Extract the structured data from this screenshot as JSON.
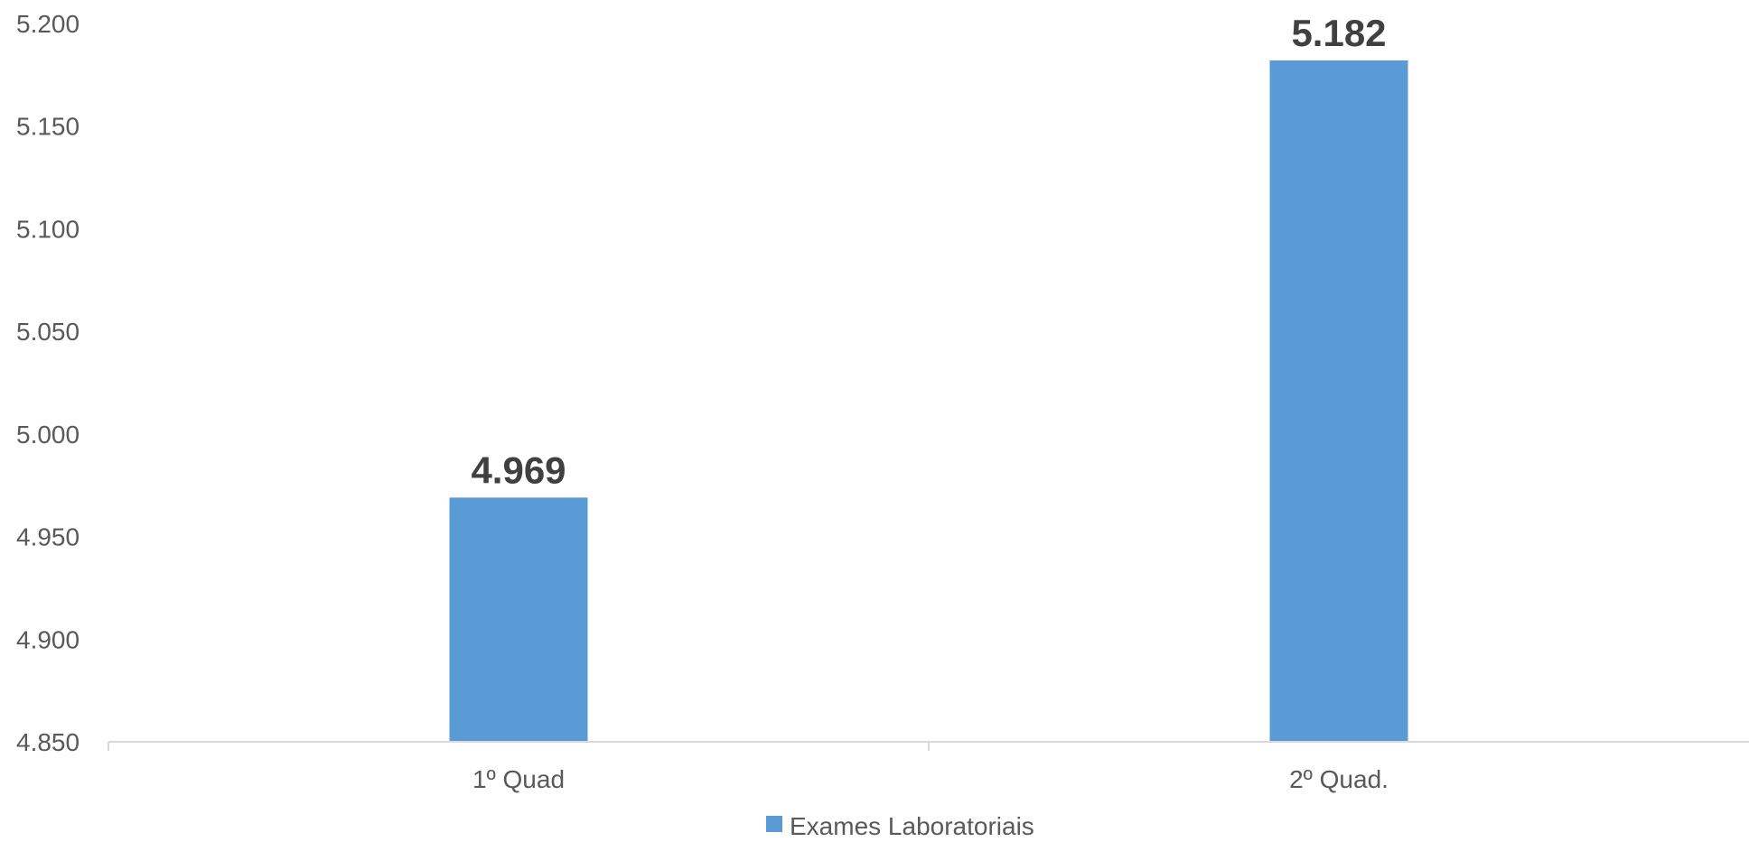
{
  "chart_data": {
    "type": "bar",
    "categories": [
      "1º Quad",
      "2º Quad."
    ],
    "series": [
      {
        "name": "Exames Laboratoriais",
        "values": [
          4969,
          5182
        ],
        "labels": [
          "4.969",
          "5.182"
        ],
        "color": "#5B9BD5"
      }
    ],
    "y_ticks": [
      {
        "value": 4850,
        "label": "4.850"
      },
      {
        "value": 4900,
        "label": "4.900"
      },
      {
        "value": 4950,
        "label": "4.950"
      },
      {
        "value": 5000,
        "label": "5.000"
      },
      {
        "value": 5050,
        "label": "5.050"
      },
      {
        "value": 5100,
        "label": "5.100"
      },
      {
        "value": 5150,
        "label": "5.150"
      },
      {
        "value": 5200,
        "label": "5.200"
      }
    ],
    "ylim": [
      4850,
      5200
    ],
    "title": "",
    "xlabel": "",
    "ylabel": "",
    "grid": false,
    "legend_position": "bottom",
    "axis_color": "#D9D9D9"
  }
}
